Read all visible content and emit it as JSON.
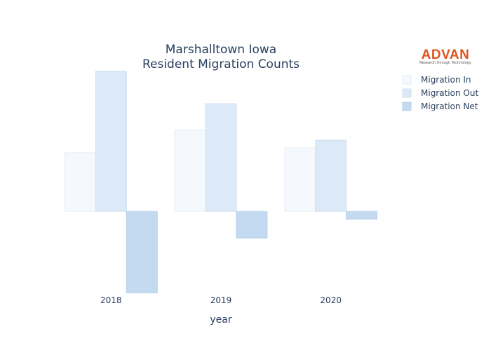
{
  "chart_data": {
    "type": "bar",
    "title_lines": [
      "Marshalltown Iowa",
      "Resident Migration Counts"
    ],
    "xlabel": "year",
    "ylabel": "",
    "categories": [
      "2018",
      "2019",
      "2020"
    ],
    "ylim": [
      -1400,
      2400
    ],
    "series": [
      {
        "name": "Migration In",
        "values": [
          1000,
          1380,
          1080
        ],
        "color": "#f5f9fd",
        "stroke": "#e2ecf7"
      },
      {
        "name": "Migration Out",
        "values": [
          2380,
          1830,
          1210
        ],
        "color": "#dce9f6",
        "stroke": "#cfe0f2"
      },
      {
        "name": "Migration Net",
        "values": [
          -1380,
          -450,
          -130
        ],
        "color": "#c4daf0",
        "stroke": "#b4cfeb"
      }
    ],
    "legend": {
      "position": "top-right"
    },
    "grid": false
  },
  "logo": {
    "name": "ADVAN",
    "tagline": "Research through Technology"
  }
}
